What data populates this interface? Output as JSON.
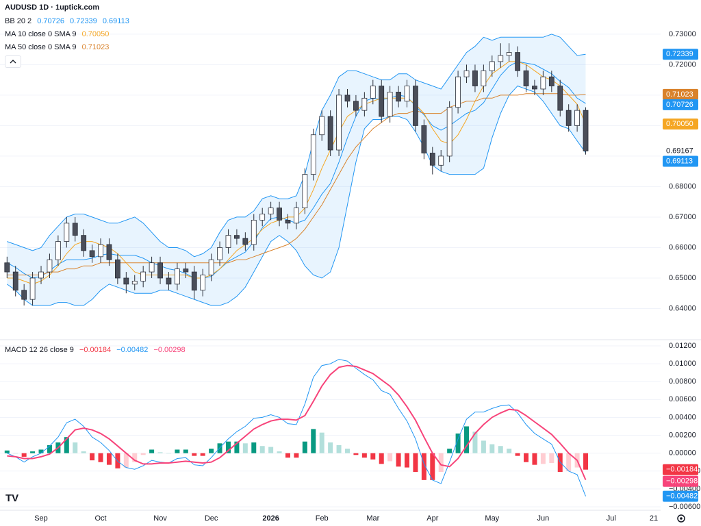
{
  "chart_data": {
    "type": "candlestick",
    "title": "AUDUSD 1D · 1uptick.com",
    "categories": [
      null,
      null,
      null,
      null,
      "Sep",
      null,
      null,
      null,
      null,
      null,
      null,
      "Oct",
      null,
      null,
      null,
      null,
      null,
      null,
      "Nov",
      null,
      null,
      null,
      null,
      null,
      "Dec",
      null,
      null,
      null,
      null,
      null,
      null,
      "2026",
      null,
      null,
      null,
      null,
      null,
      "Feb",
      null,
      null,
      null,
      null,
      null,
      "Mar",
      null,
      null,
      null,
      null,
      null,
      null,
      "Apr",
      null,
      null,
      null,
      null,
      null,
      null,
      "May",
      null,
      null,
      null,
      null,
      null,
      "Jun",
      null,
      null,
      null,
      null,
      null,
      null,
      null,
      "Jul",
      null,
      null,
      null,
      null,
      "21"
    ],
    "open": [
      0.655,
      0.652,
      0.646,
      0.643,
      0.65,
      0.652,
      0.656,
      0.662,
      0.668,
      0.664,
      0.659,
      0.657,
      0.661,
      0.656,
      0.65,
      0.648,
      0.649,
      0.652,
      0.655,
      0.65,
      0.648,
      0.653,
      0.652,
      0.646,
      0.651,
      0.656,
      0.66,
      0.664,
      0.663,
      0.661,
      0.669,
      0.671,
      0.673,
      0.669,
      0.668,
      0.673,
      0.684,
      0.697,
      0.703,
      0.692,
      0.71,
      0.708,
      0.705,
      0.709,
      0.713,
      0.703,
      0.711,
      0.708,
      0.713,
      0.7,
      0.691,
      0.687,
      0.69,
      0.706,
      0.716,
      0.718,
      0.713,
      0.718,
      0.721,
      0.723,
      0.724,
      0.718,
      0.713,
      0.712,
      0.716,
      0.713,
      0.705,
      0.7,
      0.705,
      null,
      null,
      null,
      null,
      null,
      null,
      null,
      null
    ],
    "high": [
      0.657,
      0.654,
      0.648,
      0.652,
      0.654,
      0.658,
      0.664,
      0.67,
      0.67,
      0.666,
      0.661,
      0.663,
      0.663,
      0.658,
      0.652,
      0.651,
      0.654,
      0.657,
      0.657,
      0.652,
      0.655,
      0.655,
      0.654,
      0.653,
      0.658,
      0.662,
      0.666,
      0.666,
      0.665,
      0.671,
      0.673,
      0.675,
      0.675,
      0.671,
      0.675,
      0.686,
      0.699,
      0.705,
      0.705,
      0.712,
      0.712,
      0.71,
      0.711,
      0.715,
      0.715,
      0.713,
      0.713,
      0.715,
      0.715,
      0.702,
      0.693,
      0.692,
      0.708,
      0.718,
      0.72,
      0.72,
      0.72,
      0.723,
      0.727,
      0.727,
      0.726,
      0.72,
      0.715,
      0.718,
      0.718,
      0.715,
      0.707,
      0.707,
      0.706,
      null,
      null,
      null,
      null,
      null,
      null,
      null,
      null
    ],
    "low": [
      0.65,
      0.644,
      0.641,
      0.641,
      0.648,
      0.65,
      0.654,
      0.66,
      0.662,
      0.657,
      0.655,
      0.655,
      0.654,
      0.648,
      0.645,
      0.646,
      0.647,
      0.65,
      0.648,
      0.646,
      0.646,
      0.65,
      0.643,
      0.644,
      0.649,
      0.654,
      0.658,
      0.661,
      0.659,
      0.659,
      0.667,
      0.669,
      0.667,
      0.666,
      0.666,
      0.671,
      0.682,
      0.695,
      0.69,
      0.69,
      0.706,
      0.703,
      0.703,
      0.707,
      0.701,
      0.701,
      0.706,
      0.706,
      0.698,
      0.689,
      0.684,
      0.685,
      0.688,
      0.704,
      0.714,
      0.711,
      0.711,
      0.716,
      0.719,
      0.721,
      0.716,
      0.711,
      0.71,
      0.71,
      0.711,
      0.703,
      0.698,
      0.698,
      0.6905,
      null,
      null,
      null,
      null,
      null,
      null,
      null,
      null
    ],
    "close": [
      0.652,
      0.646,
      0.643,
      0.65,
      0.652,
      0.656,
      0.662,
      0.668,
      0.664,
      0.659,
      0.657,
      0.661,
      0.656,
      0.65,
      0.648,
      0.649,
      0.652,
      0.655,
      0.65,
      0.648,
      0.653,
      0.652,
      0.646,
      0.651,
      0.656,
      0.66,
      0.664,
      0.663,
      0.661,
      0.669,
      0.671,
      0.673,
      0.669,
      0.668,
      0.673,
      0.684,
      0.697,
      0.703,
      0.692,
      0.71,
      0.708,
      0.705,
      0.709,
      0.713,
      0.703,
      0.711,
      0.708,
      0.713,
      0.7,
      0.691,
      0.687,
      0.69,
      0.706,
      0.716,
      0.718,
      0.713,
      0.718,
      0.721,
      0.723,
      0.724,
      0.718,
      0.713,
      0.712,
      0.716,
      0.713,
      0.705,
      0.7,
      0.705,
      0.69167,
      null,
      null,
      null,
      null,
      null,
      null,
      null,
      null
    ],
    "last_price_label": "0.69167",
    "up_color": "#ffffff",
    "down_color": "#4a4e59",
    "wick_color": "#2a2e39",
    "ylim": [
      0.63,
      0.7412
    ],
    "yticks": [
      {
        "value": 0.64,
        "label": "0.64000"
      },
      {
        "value": 0.65,
        "label": "0.65000"
      },
      {
        "value": 0.66,
        "label": "0.66000"
      },
      {
        "value": 0.67,
        "label": "0.67000"
      },
      {
        "value": 0.68,
        "label": "0.68000"
      },
      {
        "value": 0.69,
        "label": "0.69000"
      },
      {
        "value": 0.7,
        "label": "0.70000"
      },
      {
        "value": 0.71,
        "label": "0.71000"
      },
      {
        "value": 0.72,
        "label": "0.72000"
      },
      {
        "value": 0.73,
        "label": "0.73000"
      }
    ],
    "grid": true,
    "bollinger": {
      "label": "BB 20 2",
      "color": "#2196f3",
      "fill": "rgba(33,150,243,0.10)",
      "basis": {
        "value_label": "0.70726",
        "values": [
          0.655,
          0.6535,
          0.6515,
          0.65,
          0.6505,
          0.6525,
          0.6545,
          0.656,
          0.656,
          0.656,
          0.6565,
          0.6575,
          0.658,
          0.6575,
          0.6575,
          0.6575,
          0.6565,
          0.655,
          0.654,
          0.653,
          0.6525,
          0.6515,
          0.65,
          0.65,
          0.6505,
          0.653,
          0.6555,
          0.657,
          0.6585,
          0.662,
          0.6665,
          0.6695,
          0.67,
          0.669,
          0.668,
          0.669,
          0.673,
          0.6775,
          0.681,
          0.688,
          0.696,
          0.703,
          0.708,
          0.709,
          0.7085,
          0.709,
          0.71,
          0.7095,
          0.7065,
          0.7035,
          0.7,
          0.6985,
          0.7,
          0.702,
          0.704,
          0.705,
          0.7075,
          0.712,
          0.7165,
          0.7195,
          0.721,
          0.7205,
          0.72,
          0.7185,
          0.717,
          0.7145,
          0.7125,
          0.709,
          0.70726,
          null,
          null,
          null,
          null,
          null,
          null,
          null,
          null
        ]
      },
      "upper": {
        "value_label": "0.72339",
        "values": [
          0.662,
          0.661,
          0.66,
          0.659,
          0.66,
          0.664,
          0.667,
          0.67,
          0.671,
          0.671,
          0.67,
          0.669,
          0.668,
          0.668,
          0.669,
          0.67,
          0.668,
          0.665,
          0.662,
          0.66,
          0.66,
          0.659,
          0.657,
          0.658,
          0.66,
          0.665,
          0.669,
          0.67,
          0.67,
          0.672,
          0.676,
          0.677,
          0.676,
          0.676,
          0.677,
          0.684,
          0.695,
          0.705,
          0.71,
          0.716,
          0.718,
          0.718,
          0.717,
          0.716,
          0.715,
          0.715,
          0.717,
          0.717,
          0.715,
          0.714,
          0.713,
          0.712,
          0.716,
          0.72,
          0.724,
          0.726,
          0.729,
          0.728,
          0.729,
          0.729,
          0.729,
          0.729,
          0.729,
          0.729,
          0.73,
          0.729,
          0.726,
          0.723,
          0.72339,
          null,
          null,
          null,
          null,
          null,
          null,
          null,
          null
        ]
      },
      "lower": {
        "value_label": "0.69113",
        "values": [
          0.648,
          0.646,
          0.643,
          0.641,
          0.641,
          0.641,
          0.642,
          0.642,
          0.641,
          0.641,
          0.643,
          0.646,
          0.648,
          0.647,
          0.646,
          0.645,
          0.645,
          0.645,
          0.646,
          0.646,
          0.645,
          0.644,
          0.643,
          0.642,
          0.641,
          0.641,
          0.642,
          0.644,
          0.647,
          0.652,
          0.657,
          0.662,
          0.664,
          0.662,
          0.659,
          0.654,
          0.651,
          0.65,
          0.652,
          0.66,
          0.674,
          0.688,
          0.699,
          0.702,
          0.702,
          0.703,
          0.703,
          0.702,
          0.698,
          0.693,
          0.687,
          0.685,
          0.684,
          0.684,
          0.684,
          0.684,
          0.686,
          0.696,
          0.704,
          0.71,
          0.713,
          0.712,
          0.711,
          0.708,
          0.704,
          0.7,
          0.699,
          0.695,
          0.69113,
          null,
          null,
          null,
          null,
          null,
          null,
          null,
          null
        ]
      }
    },
    "moving_averages": [
      {
        "label": "MA 10 close 0 SMA 9",
        "color": "#f5a623",
        "value_label": "0.70050",
        "values": [
          0.65,
          0.65,
          0.649,
          0.648,
          0.649,
          0.651,
          0.654,
          0.658,
          0.661,
          0.662,
          0.662,
          0.661,
          0.66,
          0.658,
          0.655,
          0.652,
          0.651,
          0.651,
          0.651,
          0.651,
          0.651,
          0.651,
          0.65,
          0.65,
          0.651,
          0.653,
          0.656,
          0.659,
          0.661,
          0.663,
          0.666,
          0.668,
          0.669,
          0.67,
          0.67,
          0.673,
          0.679,
          0.686,
          0.692,
          0.698,
          0.703,
          0.705,
          0.707,
          0.708,
          0.709,
          0.709,
          0.709,
          0.709,
          0.707,
          0.704,
          0.699,
          0.695,
          0.694,
          0.697,
          0.702,
          0.708,
          0.713,
          0.717,
          0.719,
          0.721,
          0.721,
          0.72,
          0.718,
          0.716,
          0.715,
          0.713,
          0.71,
          0.707,
          0.7005,
          null,
          null,
          null,
          null,
          null,
          null,
          null,
          null
        ]
      },
      {
        "label": "MA 50 close 0 SMA 9",
        "color": "#d9822b",
        "value_label": "0.71023",
        "values": [
          0.651,
          0.651,
          0.651,
          0.651,
          0.651,
          0.652,
          0.652,
          0.653,
          0.653,
          0.654,
          0.654,
          0.655,
          0.655,
          0.655,
          0.655,
          0.655,
          0.655,
          0.655,
          0.655,
          0.655,
          0.655,
          0.655,
          0.655,
          0.655,
          0.655,
          0.655,
          0.655,
          0.656,
          0.656,
          0.657,
          0.658,
          0.659,
          0.66,
          0.661,
          0.663,
          0.666,
          0.67,
          0.674,
          0.679,
          0.684,
          0.689,
          0.693,
          0.696,
          0.699,
          0.701,
          0.703,
          0.704,
          0.704,
          0.705,
          0.704,
          0.704,
          0.704,
          0.706,
          0.707,
          0.708,
          0.708,
          0.709,
          0.709,
          0.71,
          0.71,
          0.71,
          0.7105,
          0.7105,
          0.7105,
          0.7105,
          0.7105,
          0.71,
          0.71,
          0.71023,
          null,
          null,
          null,
          null,
          null,
          null,
          null,
          null
        ]
      }
    ],
    "macd": {
      "label": "MACD 12 26 close 9",
      "ylim": [
        -0.00638,
        0.01261
      ],
      "yticks": [
        {
          "value": -0.006,
          "label": "−0.00600"
        },
        {
          "value": -0.004,
          "label": "−0.00400"
        },
        {
          "value": -0.002,
          "label": "−0.00200"
        },
        {
          "value": 0,
          "label": "0.00000"
        },
        {
          "value": 0.002,
          "label": "0.00200"
        },
        {
          "value": 0.004,
          "label": "0.00400"
        },
        {
          "value": 0.006,
          "label": "0.00600"
        },
        {
          "value": 0.008,
          "label": "0.00800"
        },
        {
          "value": 0.01,
          "label": "0.01000"
        },
        {
          "value": 0.012,
          "label": "0.01200"
        }
      ],
      "histogram": {
        "value_label": "−0.00184",
        "color": "#f23645",
        "colors": [
          "#089981",
          "#b2dfdb",
          "#f23645",
          "#ffcdd2"
        ],
        "values": [
          0.0003,
          0.0,
          -0.0004,
          0.0002,
          0.0004,
          0.0009,
          0.0012,
          0.0018,
          0.0012,
          0.0002,
          -0.0008,
          -0.001,
          -0.0013,
          -0.0017,
          -0.0016,
          -0.001,
          -0.0002,
          0.0004,
          0.0001,
          0.0,
          0.0004,
          0.0004,
          -0.0003,
          -0.0003,
          0.0005,
          0.0011,
          0.0013,
          0.0013,
          0.0011,
          0.0012,
          0.0008,
          0.0007,
          0.0002,
          -0.0005,
          -0.0005,
          0.0013,
          0.0027,
          0.0023,
          0.0012,
          0.0009,
          0.0005,
          -0.0002,
          -0.0005,
          -0.0007,
          -0.0012,
          -0.0009,
          -0.0015,
          -0.0016,
          -0.0021,
          -0.003,
          -0.003,
          -0.0021,
          0.0005,
          0.0022,
          0.003,
          0.0024,
          0.0014,
          0.001,
          0.0008,
          0.0005,
          -0.0003,
          -0.001,
          -0.0013,
          -0.0012,
          -0.0011,
          -0.0021,
          -0.002,
          -0.0016,
          -0.00184,
          null,
          null,
          null,
          null,
          null,
          null,
          null,
          null
        ]
      },
      "macd_line": {
        "value_label": "−0.00482",
        "color": "#2196f3",
        "values": [
          0.0,
          -0.0004,
          -0.001,
          -0.0004,
          0.0,
          0.0008,
          0.0018,
          0.0034,
          0.0038,
          0.003,
          0.0018,
          0.0012,
          0.0003,
          -0.0009,
          -0.0016,
          -0.0018,
          -0.0014,
          -0.0008,
          -0.001,
          -0.0011,
          -0.0006,
          -0.0005,
          -0.0013,
          -0.0014,
          -0.0005,
          0.0006,
          0.0016,
          0.0024,
          0.003,
          0.0039,
          0.004,
          0.0043,
          0.004,
          0.0033,
          0.0032,
          0.0055,
          0.0085,
          0.0098,
          0.01,
          0.0105,
          0.0103,
          0.0095,
          0.0088,
          0.0082,
          0.007,
          0.0066,
          0.005,
          0.0036,
          0.0016,
          -0.0012,
          -0.003,
          -0.0034,
          -0.001,
          0.0016,
          0.0038,
          0.0046,
          0.0046,
          0.005,
          0.0053,
          0.0054,
          0.0045,
          0.0032,
          0.0022,
          0.0016,
          0.001,
          -0.001,
          -0.002,
          -0.0024,
          -0.00482,
          null,
          null,
          null,
          null,
          null,
          null,
          null,
          null
        ]
      },
      "signal_line": {
        "value_label": "−0.00298",
        "color": "#f7447a",
        "values": [
          -0.0003,
          -0.0004,
          -0.0006,
          -0.0006,
          -0.0004,
          -0.0001,
          0.0006,
          0.0016,
          0.0026,
          0.0028,
          0.0026,
          0.0022,
          0.0016,
          0.0008,
          0.0,
          -0.0008,
          -0.0012,
          -0.0012,
          -0.0011,
          -0.0011,
          -0.001,
          -0.0009,
          -0.001,
          -0.0011,
          -0.001,
          -0.0005,
          0.0003,
          0.0011,
          0.0019,
          0.0027,
          0.0032,
          0.0036,
          0.0038,
          0.0038,
          0.0037,
          0.0042,
          0.0058,
          0.0075,
          0.0088,
          0.0096,
          0.0098,
          0.0097,
          0.0093,
          0.0089,
          0.0082,
          0.0075,
          0.0065,
          0.0052,
          0.0037,
          0.0018,
          0.0,
          -0.0013,
          -0.0015,
          -0.0006,
          0.0008,
          0.0022,
          0.0032,
          0.004,
          0.0045,
          0.0049,
          0.0048,
          0.0042,
          0.0035,
          0.0028,
          0.0021,
          0.0011,
          0.0,
          -0.0008,
          -0.00298,
          null,
          null,
          null,
          null,
          null,
          null,
          null,
          null
        ]
      }
    }
  }
}
